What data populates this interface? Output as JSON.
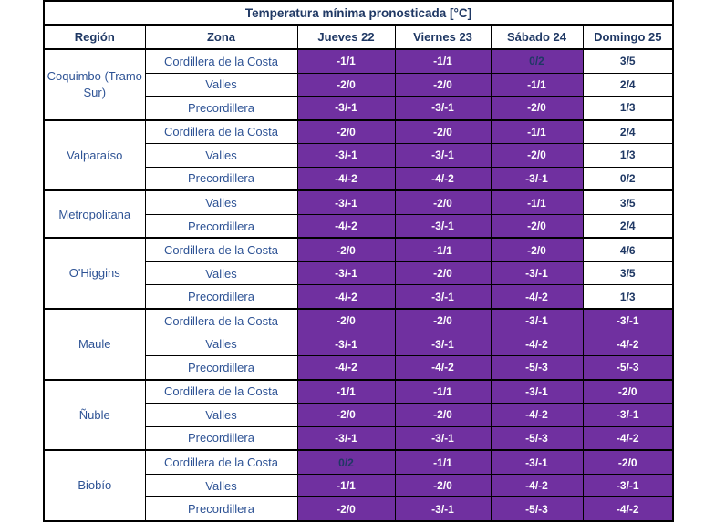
{
  "title": "Temperatura mínima pronosticada [°C]",
  "columns": [
    "Región",
    "Zona",
    "Jueves 22",
    "Viernes 23",
    "Sábado 24",
    "Domingo 25"
  ],
  "column_keys": [
    "region",
    "zona",
    "jueves-22",
    "viernes-23",
    "sabado-24",
    "domingo-25"
  ],
  "colors": {
    "warning_purple": "#7030A0",
    "header_navy": "#1F3864",
    "body_blue": "#2E5395",
    "value_on_purple": "#FFFFFF",
    "border_black": "#000000",
    "background": "#FFFFFF"
  },
  "chart_data": {
    "type": "table",
    "title": "Temperatura mínima pronosticada [°C]",
    "note": "Cells with purple background indicate frost-warning forecast values; purple cells show white bold text except non-negative minima (0/2) which keep dark blue text."
  },
  "regions": [
    {
      "name": "Coquimbo (Tramo Sur)",
      "rows": [
        {
          "zone": "Cordillera de la Costa",
          "values": [
            {
              "v": "-1/1",
              "bg": "purple",
              "fg": "white"
            },
            {
              "v": "-1/1",
              "bg": "purple",
              "fg": "white"
            },
            {
              "v": "0/2",
              "bg": "purple",
              "fg": "navy"
            },
            {
              "v": "3/5",
              "bg": "white",
              "fg": "navy"
            }
          ]
        },
        {
          "zone": "Valles",
          "values": [
            {
              "v": "-2/0",
              "bg": "purple",
              "fg": "white"
            },
            {
              "v": "-2/0",
              "bg": "purple",
              "fg": "white"
            },
            {
              "v": "-1/1",
              "bg": "purple",
              "fg": "white"
            },
            {
              "v": "2/4",
              "bg": "white",
              "fg": "navy"
            }
          ]
        },
        {
          "zone": "Precordillera",
          "values": [
            {
              "v": "-3/-1",
              "bg": "purple",
              "fg": "white"
            },
            {
              "v": "-3/-1",
              "bg": "purple",
              "fg": "white"
            },
            {
              "v": "-2/0",
              "bg": "purple",
              "fg": "white"
            },
            {
              "v": "1/3",
              "bg": "white",
              "fg": "navy"
            }
          ]
        }
      ]
    },
    {
      "name": "Valparaíso",
      "rows": [
        {
          "zone": "Cordillera de la Costa",
          "values": [
            {
              "v": "-2/0",
              "bg": "purple",
              "fg": "white"
            },
            {
              "v": "-2/0",
              "bg": "purple",
              "fg": "white"
            },
            {
              "v": "-1/1",
              "bg": "purple",
              "fg": "white"
            },
            {
              "v": "2/4",
              "bg": "white",
              "fg": "navy"
            }
          ]
        },
        {
          "zone": "Valles",
          "values": [
            {
              "v": "-3/-1",
              "bg": "purple",
              "fg": "white"
            },
            {
              "v": "-3/-1",
              "bg": "purple",
              "fg": "white"
            },
            {
              "v": "-2/0",
              "bg": "purple",
              "fg": "white"
            },
            {
              "v": "1/3",
              "bg": "white",
              "fg": "navy"
            }
          ]
        },
        {
          "zone": "Precordillera",
          "values": [
            {
              "v": "-4/-2",
              "bg": "purple",
              "fg": "white"
            },
            {
              "v": "-4/-2",
              "bg": "purple",
              "fg": "white"
            },
            {
              "v": "-3/-1",
              "bg": "purple",
              "fg": "white"
            },
            {
              "v": "0/2",
              "bg": "white",
              "fg": "navy"
            }
          ]
        }
      ]
    },
    {
      "name": "Metropolitana",
      "rows": [
        {
          "zone": "Valles",
          "values": [
            {
              "v": "-3/-1",
              "bg": "purple",
              "fg": "white"
            },
            {
              "v": "-2/0",
              "bg": "purple",
              "fg": "white"
            },
            {
              "v": "-1/1",
              "bg": "purple",
              "fg": "white"
            },
            {
              "v": "3/5",
              "bg": "white",
              "fg": "navy"
            }
          ]
        },
        {
          "zone": "Precordillera",
          "values": [
            {
              "v": "-4/-2",
              "bg": "purple",
              "fg": "white"
            },
            {
              "v": "-3/-1",
              "bg": "purple",
              "fg": "white"
            },
            {
              "v": "-2/0",
              "bg": "purple",
              "fg": "white"
            },
            {
              "v": "2/4",
              "bg": "white",
              "fg": "navy"
            }
          ]
        }
      ]
    },
    {
      "name": "O'Higgins",
      "rows": [
        {
          "zone": "Cordillera de la Costa",
          "values": [
            {
              "v": "-2/0",
              "bg": "purple",
              "fg": "white"
            },
            {
              "v": "-1/1",
              "bg": "purple",
              "fg": "white"
            },
            {
              "v": "-2/0",
              "bg": "purple",
              "fg": "white"
            },
            {
              "v": "4/6",
              "bg": "white",
              "fg": "navy"
            }
          ]
        },
        {
          "zone": "Valles",
          "values": [
            {
              "v": "-3/-1",
              "bg": "purple",
              "fg": "white"
            },
            {
              "v": "-2/0",
              "bg": "purple",
              "fg": "white"
            },
            {
              "v": "-3/-1",
              "bg": "purple",
              "fg": "white"
            },
            {
              "v": "3/5",
              "bg": "white",
              "fg": "navy"
            }
          ]
        },
        {
          "zone": "Precordillera",
          "values": [
            {
              "v": "-4/-2",
              "bg": "purple",
              "fg": "white"
            },
            {
              "v": "-3/-1",
              "bg": "purple",
              "fg": "white"
            },
            {
              "v": "-4/-2",
              "bg": "purple",
              "fg": "white"
            },
            {
              "v": "1/3",
              "bg": "white",
              "fg": "navy"
            }
          ]
        }
      ]
    },
    {
      "name": "Maule",
      "rows": [
        {
          "zone": "Cordillera de la Costa",
          "values": [
            {
              "v": "-2/0",
              "bg": "purple",
              "fg": "white"
            },
            {
              "v": "-2/0",
              "bg": "purple",
              "fg": "white"
            },
            {
              "v": "-3/-1",
              "bg": "purple",
              "fg": "white"
            },
            {
              "v": "-3/-1",
              "bg": "purple",
              "fg": "white"
            }
          ]
        },
        {
          "zone": "Valles",
          "values": [
            {
              "v": "-3/-1",
              "bg": "purple",
              "fg": "white"
            },
            {
              "v": "-3/-1",
              "bg": "purple",
              "fg": "white"
            },
            {
              "v": "-4/-2",
              "bg": "purple",
              "fg": "white"
            },
            {
              "v": "-4/-2",
              "bg": "purple",
              "fg": "white"
            }
          ]
        },
        {
          "zone": "Precordillera",
          "values": [
            {
              "v": "-4/-2",
              "bg": "purple",
              "fg": "white"
            },
            {
              "v": "-4/-2",
              "bg": "purple",
              "fg": "white"
            },
            {
              "v": "-5/-3",
              "bg": "purple",
              "fg": "white"
            },
            {
              "v": "-5/-3",
              "bg": "purple",
              "fg": "white"
            }
          ]
        }
      ]
    },
    {
      "name": "Ñuble",
      "rows": [
        {
          "zone": "Cordillera de la Costa",
          "values": [
            {
              "v": "-1/1",
              "bg": "purple",
              "fg": "white"
            },
            {
              "v": "-1/1",
              "bg": "purple",
              "fg": "white"
            },
            {
              "v": "-3/-1",
              "bg": "purple",
              "fg": "white"
            },
            {
              "v": "-2/0",
              "bg": "purple",
              "fg": "white"
            }
          ]
        },
        {
          "zone": "Valles",
          "values": [
            {
              "v": "-2/0",
              "bg": "purple",
              "fg": "white"
            },
            {
              "v": "-2/0",
              "bg": "purple",
              "fg": "white"
            },
            {
              "v": "-4/-2",
              "bg": "purple",
              "fg": "white"
            },
            {
              "v": "-3/-1",
              "bg": "purple",
              "fg": "white"
            }
          ]
        },
        {
          "zone": "Precordillera",
          "values": [
            {
              "v": "-3/-1",
              "bg": "purple",
              "fg": "white"
            },
            {
              "v": "-3/-1",
              "bg": "purple",
              "fg": "white"
            },
            {
              "v": "-5/-3",
              "bg": "purple",
              "fg": "white"
            },
            {
              "v": "-4/-2",
              "bg": "purple",
              "fg": "white"
            }
          ]
        }
      ]
    },
    {
      "name": "Biobío",
      "rows": [
        {
          "zone": "Cordillera de la Costa",
          "values": [
            {
              "v": "0/2",
              "bg": "purple",
              "fg": "navy"
            },
            {
              "v": "-1/1",
              "bg": "purple",
              "fg": "white"
            },
            {
              "v": "-3/-1",
              "bg": "purple",
              "fg": "white"
            },
            {
              "v": "-2/0",
              "bg": "purple",
              "fg": "white"
            }
          ]
        },
        {
          "zone": "Valles",
          "values": [
            {
              "v": "-1/1",
              "bg": "purple",
              "fg": "white"
            },
            {
              "v": "-2/0",
              "bg": "purple",
              "fg": "white"
            },
            {
              "v": "-4/-2",
              "bg": "purple",
              "fg": "white"
            },
            {
              "v": "-3/-1",
              "bg": "purple",
              "fg": "white"
            }
          ]
        },
        {
          "zone": "Precordillera",
          "values": [
            {
              "v": "-2/0",
              "bg": "purple",
              "fg": "white"
            },
            {
              "v": "-3/-1",
              "bg": "purple",
              "fg": "white"
            },
            {
              "v": "-5/-3",
              "bg": "purple",
              "fg": "white"
            },
            {
              "v": "-4/-2",
              "bg": "purple",
              "fg": "white"
            }
          ]
        }
      ]
    }
  ]
}
